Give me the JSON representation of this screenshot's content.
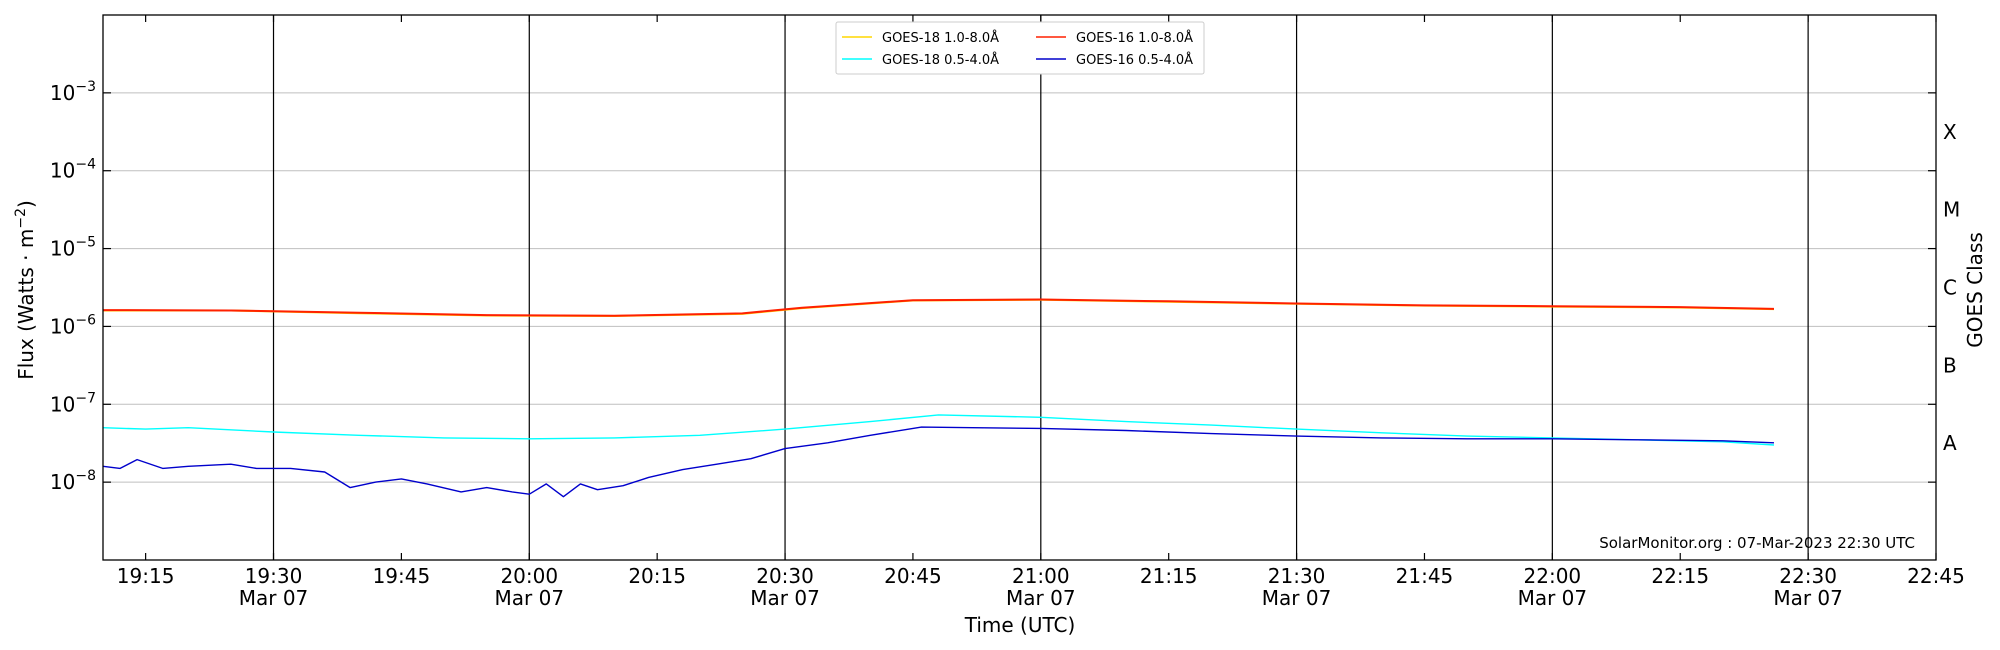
{
  "chart_data": {
    "type": "line",
    "title": "",
    "xlabel": "Time (UTC)",
    "ylabel": "Flux (Watts · m^-2)",
    "ylabel_right": "GOES Class",
    "yscale": "log",
    "xlim": [
      "2023-03-07 19:10",
      "2023-03-07 22:45"
    ],
    "ylim": [
      1e-09,
      0.01
    ],
    "grid": true,
    "legend_position": "upper center",
    "annotation": "SolarMonitor.org : 07-Mar-2023 22:30 UTC",
    "x_ticks": [
      {
        "time": "19:15",
        "top": "19:15",
        "bottom": ""
      },
      {
        "time": "19:30",
        "top": "19:30",
        "bottom": "Mar 07"
      },
      {
        "time": "19:45",
        "top": "19:45",
        "bottom": ""
      },
      {
        "time": "20:00",
        "top": "20:00",
        "bottom": "Mar 07"
      },
      {
        "time": "20:15",
        "top": "20:15",
        "bottom": ""
      },
      {
        "time": "20:30",
        "top": "20:30",
        "bottom": "Mar 07"
      },
      {
        "time": "20:45",
        "top": "20:45",
        "bottom": ""
      },
      {
        "time": "21:00",
        "top": "21:00",
        "bottom": "Mar 07"
      },
      {
        "time": "21:15",
        "top": "21:15",
        "bottom": ""
      },
      {
        "time": "21:30",
        "top": "21:30",
        "bottom": "Mar 07"
      },
      {
        "time": "21:45",
        "top": "21:45",
        "bottom": ""
      },
      {
        "time": "22:00",
        "top": "22:00",
        "bottom": "Mar 07"
      },
      {
        "time": "22:15",
        "top": "22:15",
        "bottom": ""
      },
      {
        "time": "22:30",
        "top": "22:30",
        "bottom": "Mar 07"
      },
      {
        "time": "22:45",
        "top": "22:45",
        "bottom": ""
      }
    ],
    "y_ticks": [
      {
        "value": 1e-08,
        "label_base": "10",
        "label_exp": "−8"
      },
      {
        "value": 1e-07,
        "label_base": "10",
        "label_exp": "−7"
      },
      {
        "value": 1e-06,
        "label_base": "10",
        "label_exp": "−6"
      },
      {
        "value": 1e-05,
        "label_base": "10",
        "label_exp": "−5"
      },
      {
        "value": 0.0001,
        "label_base": "10",
        "label_exp": "−4"
      },
      {
        "value": 0.001,
        "label_base": "10",
        "label_exp": "−3"
      }
    ],
    "goes_classes": [
      {
        "label": "A",
        "value": 3.16e-08
      },
      {
        "label": "B",
        "value": 3.16e-07
      },
      {
        "label": "C",
        "value": 3.16e-06
      },
      {
        "label": "M",
        "value": 3.16e-05
      },
      {
        "label": "X",
        "value": 0.000316
      }
    ],
    "event_lines": [
      "19:30",
      "20:00",
      "20:30",
      "21:00",
      "21:30",
      "22:00",
      "22:30"
    ],
    "series": [
      {
        "name": "GOES-18 1.0-8.0Å",
        "color": "#ffd700",
        "x": [
          "19:10",
          "19:25",
          "19:40",
          "19:55",
          "20:10",
          "20:25",
          "20:32",
          "20:45",
          "21:00",
          "21:15",
          "21:30",
          "21:45",
          "22:00",
          "22:15",
          "22:26"
        ],
        "y": [
          1.6e-06,
          1.6e-06,
          1.48e-06,
          1.38e-06,
          1.36e-06,
          1.45e-06,
          1.72e-06,
          2.15e-06,
          2.2e-06,
          2.08e-06,
          1.95e-06,
          1.85e-06,
          1.8e-06,
          1.75e-06,
          1.67e-06
        ]
      },
      {
        "name": "GOES-16 1.0-8.0Å",
        "color": "#ff2000",
        "x": [
          "19:10",
          "19:25",
          "19:40",
          "19:55",
          "20:10",
          "20:25",
          "20:32",
          "20:45",
          "21:00",
          "21:15",
          "21:30",
          "21:45",
          "22:00",
          "22:15",
          "22:26"
        ],
        "y": [
          1.62e-06,
          1.6e-06,
          1.5e-06,
          1.4e-06,
          1.37e-06,
          1.47e-06,
          1.74e-06,
          2.17e-06,
          2.22e-06,
          2.1e-06,
          1.97e-06,
          1.86e-06,
          1.82e-06,
          1.77e-06,
          1.68e-06
        ]
      },
      {
        "name": "GOES-18 0.5-4.0Å",
        "color": "#00ffff",
        "x": [
          "19:10",
          "19:15",
          "19:20",
          "19:30",
          "19:40",
          "19:50",
          "20:00",
          "20:10",
          "20:20",
          "20:30",
          "20:40",
          "20:48",
          "21:00",
          "21:10",
          "21:20",
          "21:30",
          "21:40",
          "21:50",
          "22:00",
          "22:10",
          "22:20",
          "22:26"
        ],
        "y": [
          5e-08,
          4.8e-08,
          5e-08,
          4.4e-08,
          4e-08,
          3.7e-08,
          3.6e-08,
          3.7e-08,
          4e-08,
          4.8e-08,
          6e-08,
          7.3e-08,
          6.8e-08,
          6e-08,
          5.4e-08,
          4.8e-08,
          4.3e-08,
          3.9e-08,
          3.7e-08,
          3.5e-08,
          3.3e-08,
          3e-08
        ]
      },
      {
        "name": "GOES-16 0.5-4.0Å",
        "color": "#0000cc",
        "x": [
          "19:10",
          "19:12",
          "19:14",
          "19:17",
          "19:20",
          "19:25",
          "19:28",
          "19:32",
          "19:36",
          "19:39",
          "19:42",
          "19:45",
          "19:48",
          "19:52",
          "19:55",
          "19:58",
          "20:00",
          "20:02",
          "20:04",
          "20:06",
          "20:08",
          "20:11",
          "20:14",
          "20:18",
          "20:22",
          "20:26",
          "20:30",
          "20:35",
          "20:40",
          "20:46",
          "20:52",
          "21:00",
          "21:10",
          "21:20",
          "21:30",
          "21:40",
          "21:50",
          "22:00",
          "22:10",
          "22:20",
          "22:26"
        ],
        "y": [
          1.6e-08,
          1.5e-08,
          1.95e-08,
          1.5e-08,
          1.6e-08,
          1.7e-08,
          1.5e-08,
          1.5e-08,
          1.35e-08,
          8.5e-09,
          1e-08,
          1.1e-08,
          9.5e-09,
          7.5e-09,
          8.5e-09,
          7.5e-09,
          7e-09,
          9.5e-09,
          6.5e-09,
          9.5e-09,
          8e-09,
          9e-09,
          1.15e-08,
          1.45e-08,
          1.7e-08,
          2e-08,
          2.7e-08,
          3.2e-08,
          4e-08,
          5.1e-08,
          5e-08,
          4.9e-08,
          4.6e-08,
          4.2e-08,
          3.9e-08,
          3.7e-08,
          3.6e-08,
          3.6e-08,
          3.5e-08,
          3.4e-08,
          3.2e-08
        ]
      }
    ]
  }
}
